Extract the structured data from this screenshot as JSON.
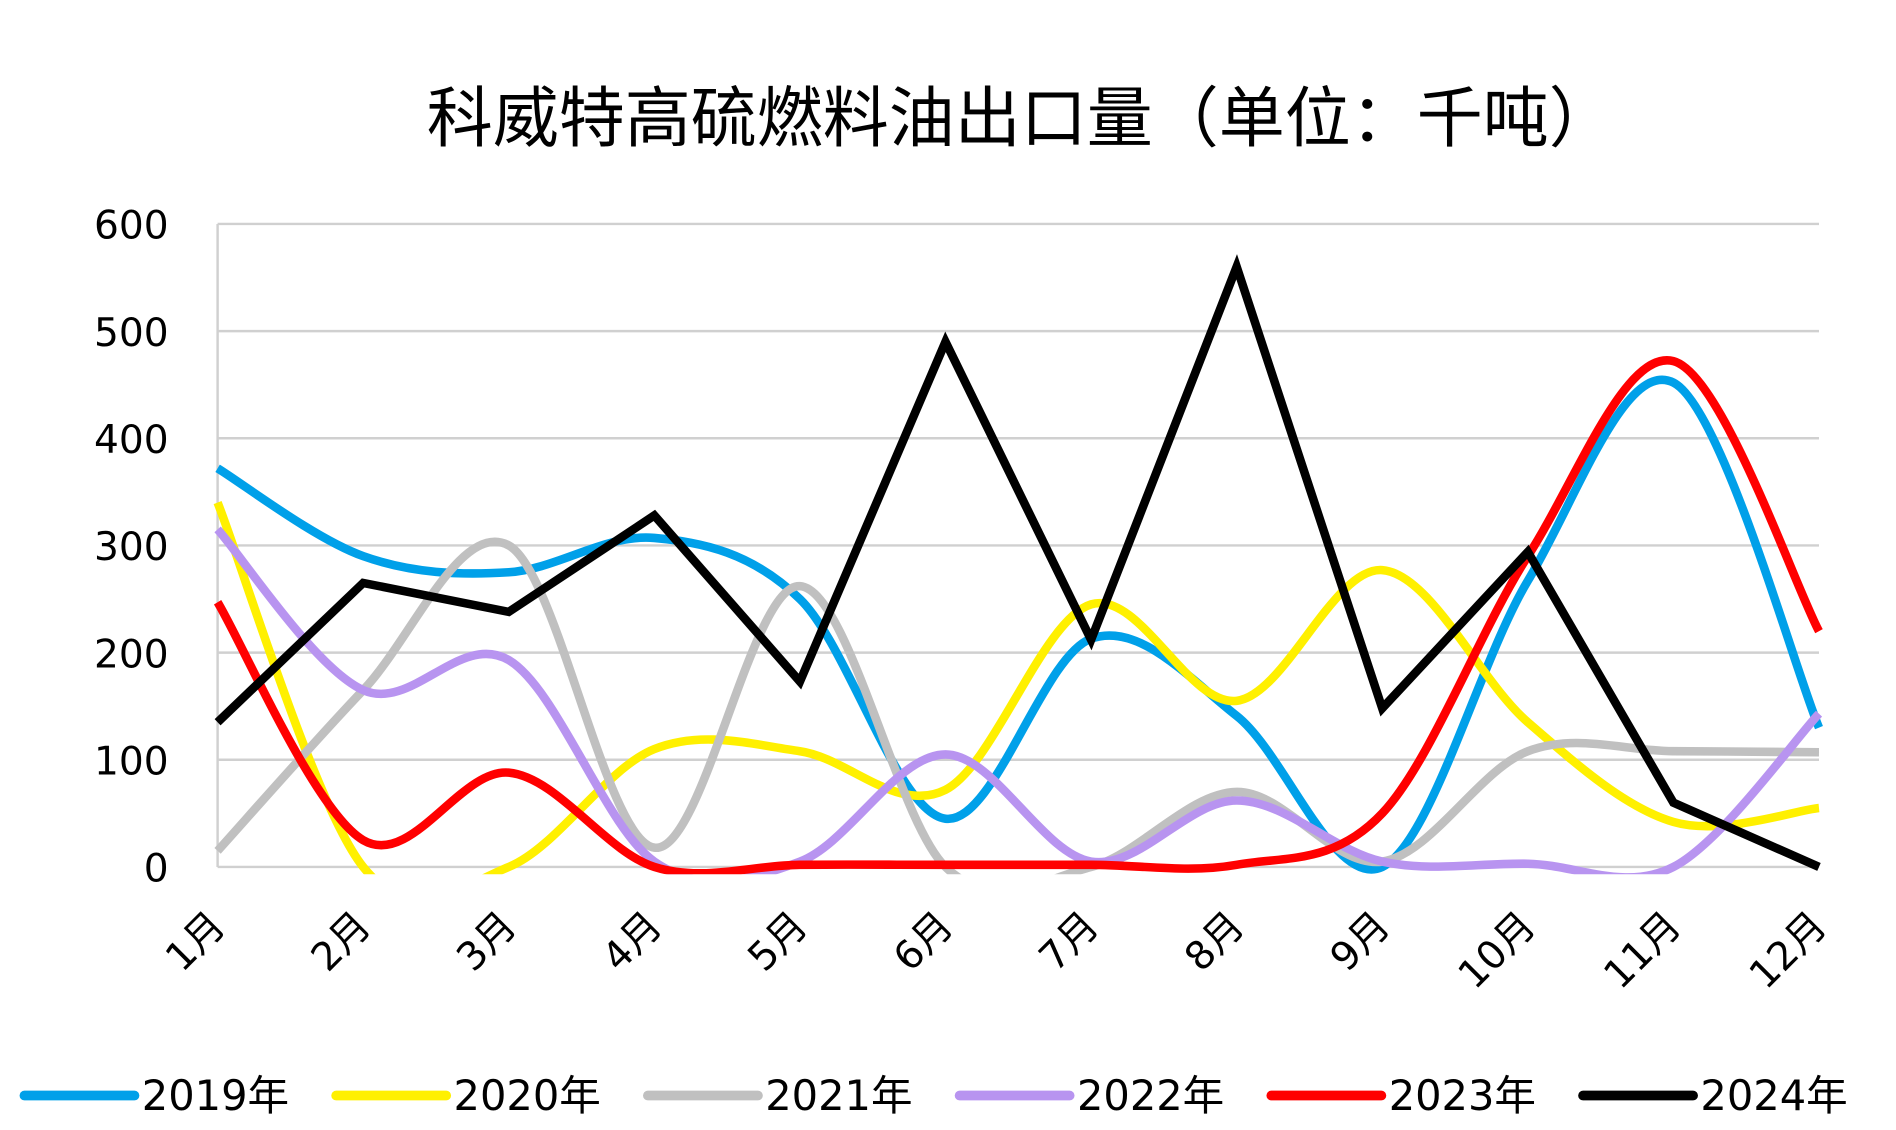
{
  "chart_data": {
    "type": "line",
    "title": "科威特高硫燃料油出口量（单位：千吨）",
    "xlabel": "",
    "ylabel": "",
    "categories": [
      "1月",
      "2月",
      "3月",
      "4月",
      "5月",
      "6月",
      "7月",
      "8月",
      "9月",
      "10月",
      "11月",
      "12月"
    ],
    "ylim": [
      0,
      600
    ],
    "yticks": [
      "0",
      "100",
      "200",
      "300",
      "400",
      "500",
      "600"
    ],
    "grid": true,
    "legend": "bottom",
    "series": [
      {
        "name": "2019年",
        "color": "#00A0E9",
        "smooth": true,
        "values": [
          372,
          290,
          275,
          307,
          250,
          45,
          213,
          141,
          0,
          267,
          452,
          130
        ]
      },
      {
        "name": "2020年",
        "color": "#FFF000",
        "smooth": true,
        "values": [
          340,
          0,
          0,
          110,
          108,
          72,
          245,
          155,
          277,
          135,
          42,
          55
        ]
      },
      {
        "name": "2021年",
        "color": "#C0C0C0",
        "smooth": true,
        "values": [
          15,
          165,
          300,
          18,
          262,
          0,
          0,
          70,
          5,
          108,
          108,
          107
        ]
      },
      {
        "name": "2022年",
        "color": "#B894F0",
        "smooth": true,
        "values": [
          315,
          165,
          193,
          5,
          5,
          105,
          5,
          62,
          5,
          3,
          0,
          143
        ]
      },
      {
        "name": "2023年",
        "color": "#FF0000",
        "smooth": true,
        "values": [
          247,
          25,
          88,
          0,
          2,
          2,
          2,
          2,
          50,
          290,
          472,
          220
        ]
      },
      {
        "name": "2024年",
        "color": "#000000",
        "smooth": false,
        "values": [
          135,
          265,
          238,
          328,
          173,
          490,
          212,
          560,
          148,
          294,
          60,
          0
        ]
      }
    ]
  }
}
